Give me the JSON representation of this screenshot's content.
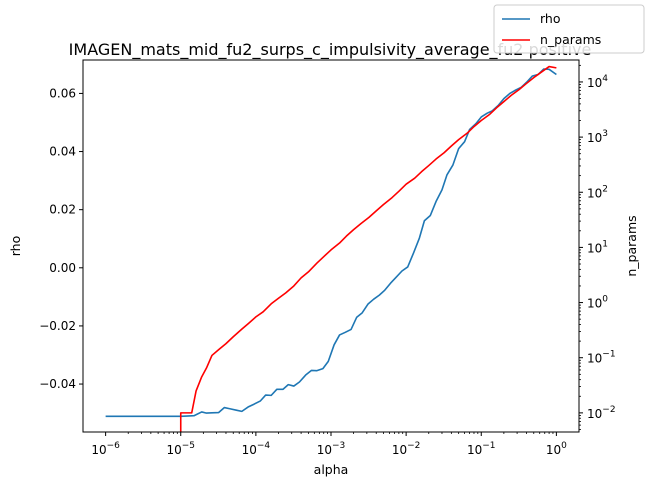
{
  "chart_data": {
    "type": "line",
    "title": "IMAGEN_mats_mid_fu2_surps_c_impulsivity_average_fu2 positive",
    "xlabel": "alpha",
    "ylabel": "rho",
    "y2label": "n_params",
    "xscale": "log",
    "x_range": [
      5e-07,
      2
    ],
    "y_range": [
      -0.0565,
      0.0715
    ],
    "y2scale": "log",
    "y2_range": [
      0.0045,
      25000
    ],
    "legend_position": "top-right",
    "grid": false,
    "x_ticks": [
      {
        "value": 1e-06,
        "base": "10",
        "exp": "−6"
      },
      {
        "value": 1e-05,
        "base": "10",
        "exp": "−5"
      },
      {
        "value": 0.0001,
        "base": "10",
        "exp": "−4"
      },
      {
        "value": 0.001,
        "base": "10",
        "exp": "−3"
      },
      {
        "value": 0.01,
        "base": "10",
        "exp": "−2"
      },
      {
        "value": 0.1,
        "base": "10",
        "exp": "−1"
      },
      {
        "value": 1,
        "base": "10",
        "exp": "0"
      }
    ],
    "y_ticks": [
      {
        "value": -0.04,
        "label": "−0.04"
      },
      {
        "value": -0.02,
        "label": "−0.02"
      },
      {
        "value": 0.0,
        "label": "0.00"
      },
      {
        "value": 0.02,
        "label": "0.02"
      },
      {
        "value": 0.04,
        "label": "0.04"
      },
      {
        "value": 0.06,
        "label": "0.06"
      }
    ],
    "y2_ticks": [
      {
        "value": 0.01,
        "base": "10",
        "exp": "−2"
      },
      {
        "value": 0.1,
        "base": "10",
        "exp": "−1"
      },
      {
        "value": 1,
        "base": "10",
        "exp": "0"
      },
      {
        "value": 10,
        "base": "10",
        "exp": "1"
      },
      {
        "value": 100,
        "base": "10",
        "exp": "2"
      },
      {
        "value": 1000,
        "base": "10",
        "exp": "3"
      },
      {
        "value": 10000,
        "base": "10",
        "exp": "4"
      }
    ],
    "series": [
      {
        "name": "rho",
        "axis": "left",
        "color": "#1f77b4",
        "x": [
          1e-06,
          3e-06,
          5e-06,
          1e-05,
          1.2e-05,
          1.5e-05,
          1.9e-05,
          2.2e-05,
          2.6e-05,
          3.2e-05,
          3.8e-05,
          4.5e-05,
          5.5e-05,
          6.5e-05,
          8e-05,
          9.5e-05,
          0.000115,
          0.000135,
          0.00016,
          0.00019,
          0.00023,
          0.00027,
          0.00032,
          0.00038,
          0.00046,
          0.00055,
          0.00065,
          0.00078,
          0.00092,
          0.0011,
          0.0013,
          0.00155,
          0.00185,
          0.0022,
          0.0026,
          0.0031,
          0.0037,
          0.0044,
          0.0052,
          0.0062,
          0.0074,
          0.0088,
          0.0105,
          0.0125,
          0.015,
          0.0175,
          0.021,
          0.025,
          0.03,
          0.035,
          0.042,
          0.05,
          0.06,
          0.07,
          0.085,
          0.1,
          0.12,
          0.14,
          0.17,
          0.2,
          0.24,
          0.28,
          0.34,
          0.4,
          0.48,
          0.57,
          0.68,
          0.8,
          1.0
        ],
        "values": [
          -0.0511,
          -0.0511,
          -0.0511,
          -0.0511,
          -0.051,
          -0.0509,
          -0.0496,
          -0.05,
          -0.0499,
          -0.0498,
          -0.0481,
          -0.0485,
          -0.049,
          -0.0494,
          -0.0478,
          -0.0469,
          -0.0458,
          -0.0438,
          -0.0439,
          -0.0418,
          -0.0418,
          -0.0402,
          -0.0407,
          -0.0393,
          -0.0369,
          -0.0353,
          -0.0354,
          -0.0347,
          -0.0322,
          -0.0265,
          -0.0231,
          -0.0222,
          -0.0212,
          -0.017,
          -0.0155,
          -0.0125,
          -0.0108,
          -0.0094,
          -0.0077,
          -0.0053,
          -0.0032,
          -0.0011,
          0.0003,
          0.005,
          0.0102,
          0.0162,
          0.018,
          0.0228,
          0.0268,
          0.032,
          0.0354,
          0.041,
          0.0434,
          0.0476,
          0.0496,
          0.0519,
          0.0532,
          0.054,
          0.056,
          0.0582,
          0.06,
          0.061,
          0.0621,
          0.0638,
          0.066,
          0.0665,
          0.0684,
          0.0683,
          0.0665
        ]
      },
      {
        "name": "n_params",
        "axis": "right",
        "color": "#ff0000",
        "x": [
          1e-05,
          1e-05,
          1.2e-05,
          1.4e-05,
          1.6e-05,
          1.9e-05,
          2.2e-05,
          2.6e-05,
          3.2e-05,
          4e-05,
          5e-05,
          6.5e-05,
          8e-05,
          0.0001,
          0.000125,
          0.00016,
          0.0002,
          0.00025,
          0.00032,
          0.0004,
          0.0005,
          0.00065,
          0.0008,
          0.001,
          0.0013,
          0.0016,
          0.002,
          0.0025,
          0.0032,
          0.004,
          0.005,
          0.0065,
          0.008,
          0.01,
          0.013,
          0.016,
          0.02,
          0.025,
          0.032,
          0.04,
          0.05,
          0.065,
          0.08,
          0.1,
          0.13,
          0.16,
          0.2,
          0.25,
          0.32,
          0.4,
          0.5,
          0.65,
          0.8,
          1.0
        ],
        "values": [
          0.004,
          0.01,
          0.01,
          0.01,
          0.025,
          0.045,
          0.065,
          0.11,
          0.14,
          0.18,
          0.24,
          0.33,
          0.42,
          0.55,
          0.68,
          0.95,
          1.2,
          1.5,
          2.0,
          2.8,
          3.6,
          5.2,
          6.8,
          9.0,
          12,
          16,
          21,
          27,
          35,
          46,
          60,
          80,
          104,
          140,
          180,
          235,
          305,
          400,
          520,
          690,
          900,
          1180,
          1550,
          2000,
          2600,
          3400,
          4400,
          5700,
          7300,
          9400,
          12000,
          15500,
          19000,
          18000
        ]
      }
    ]
  }
}
